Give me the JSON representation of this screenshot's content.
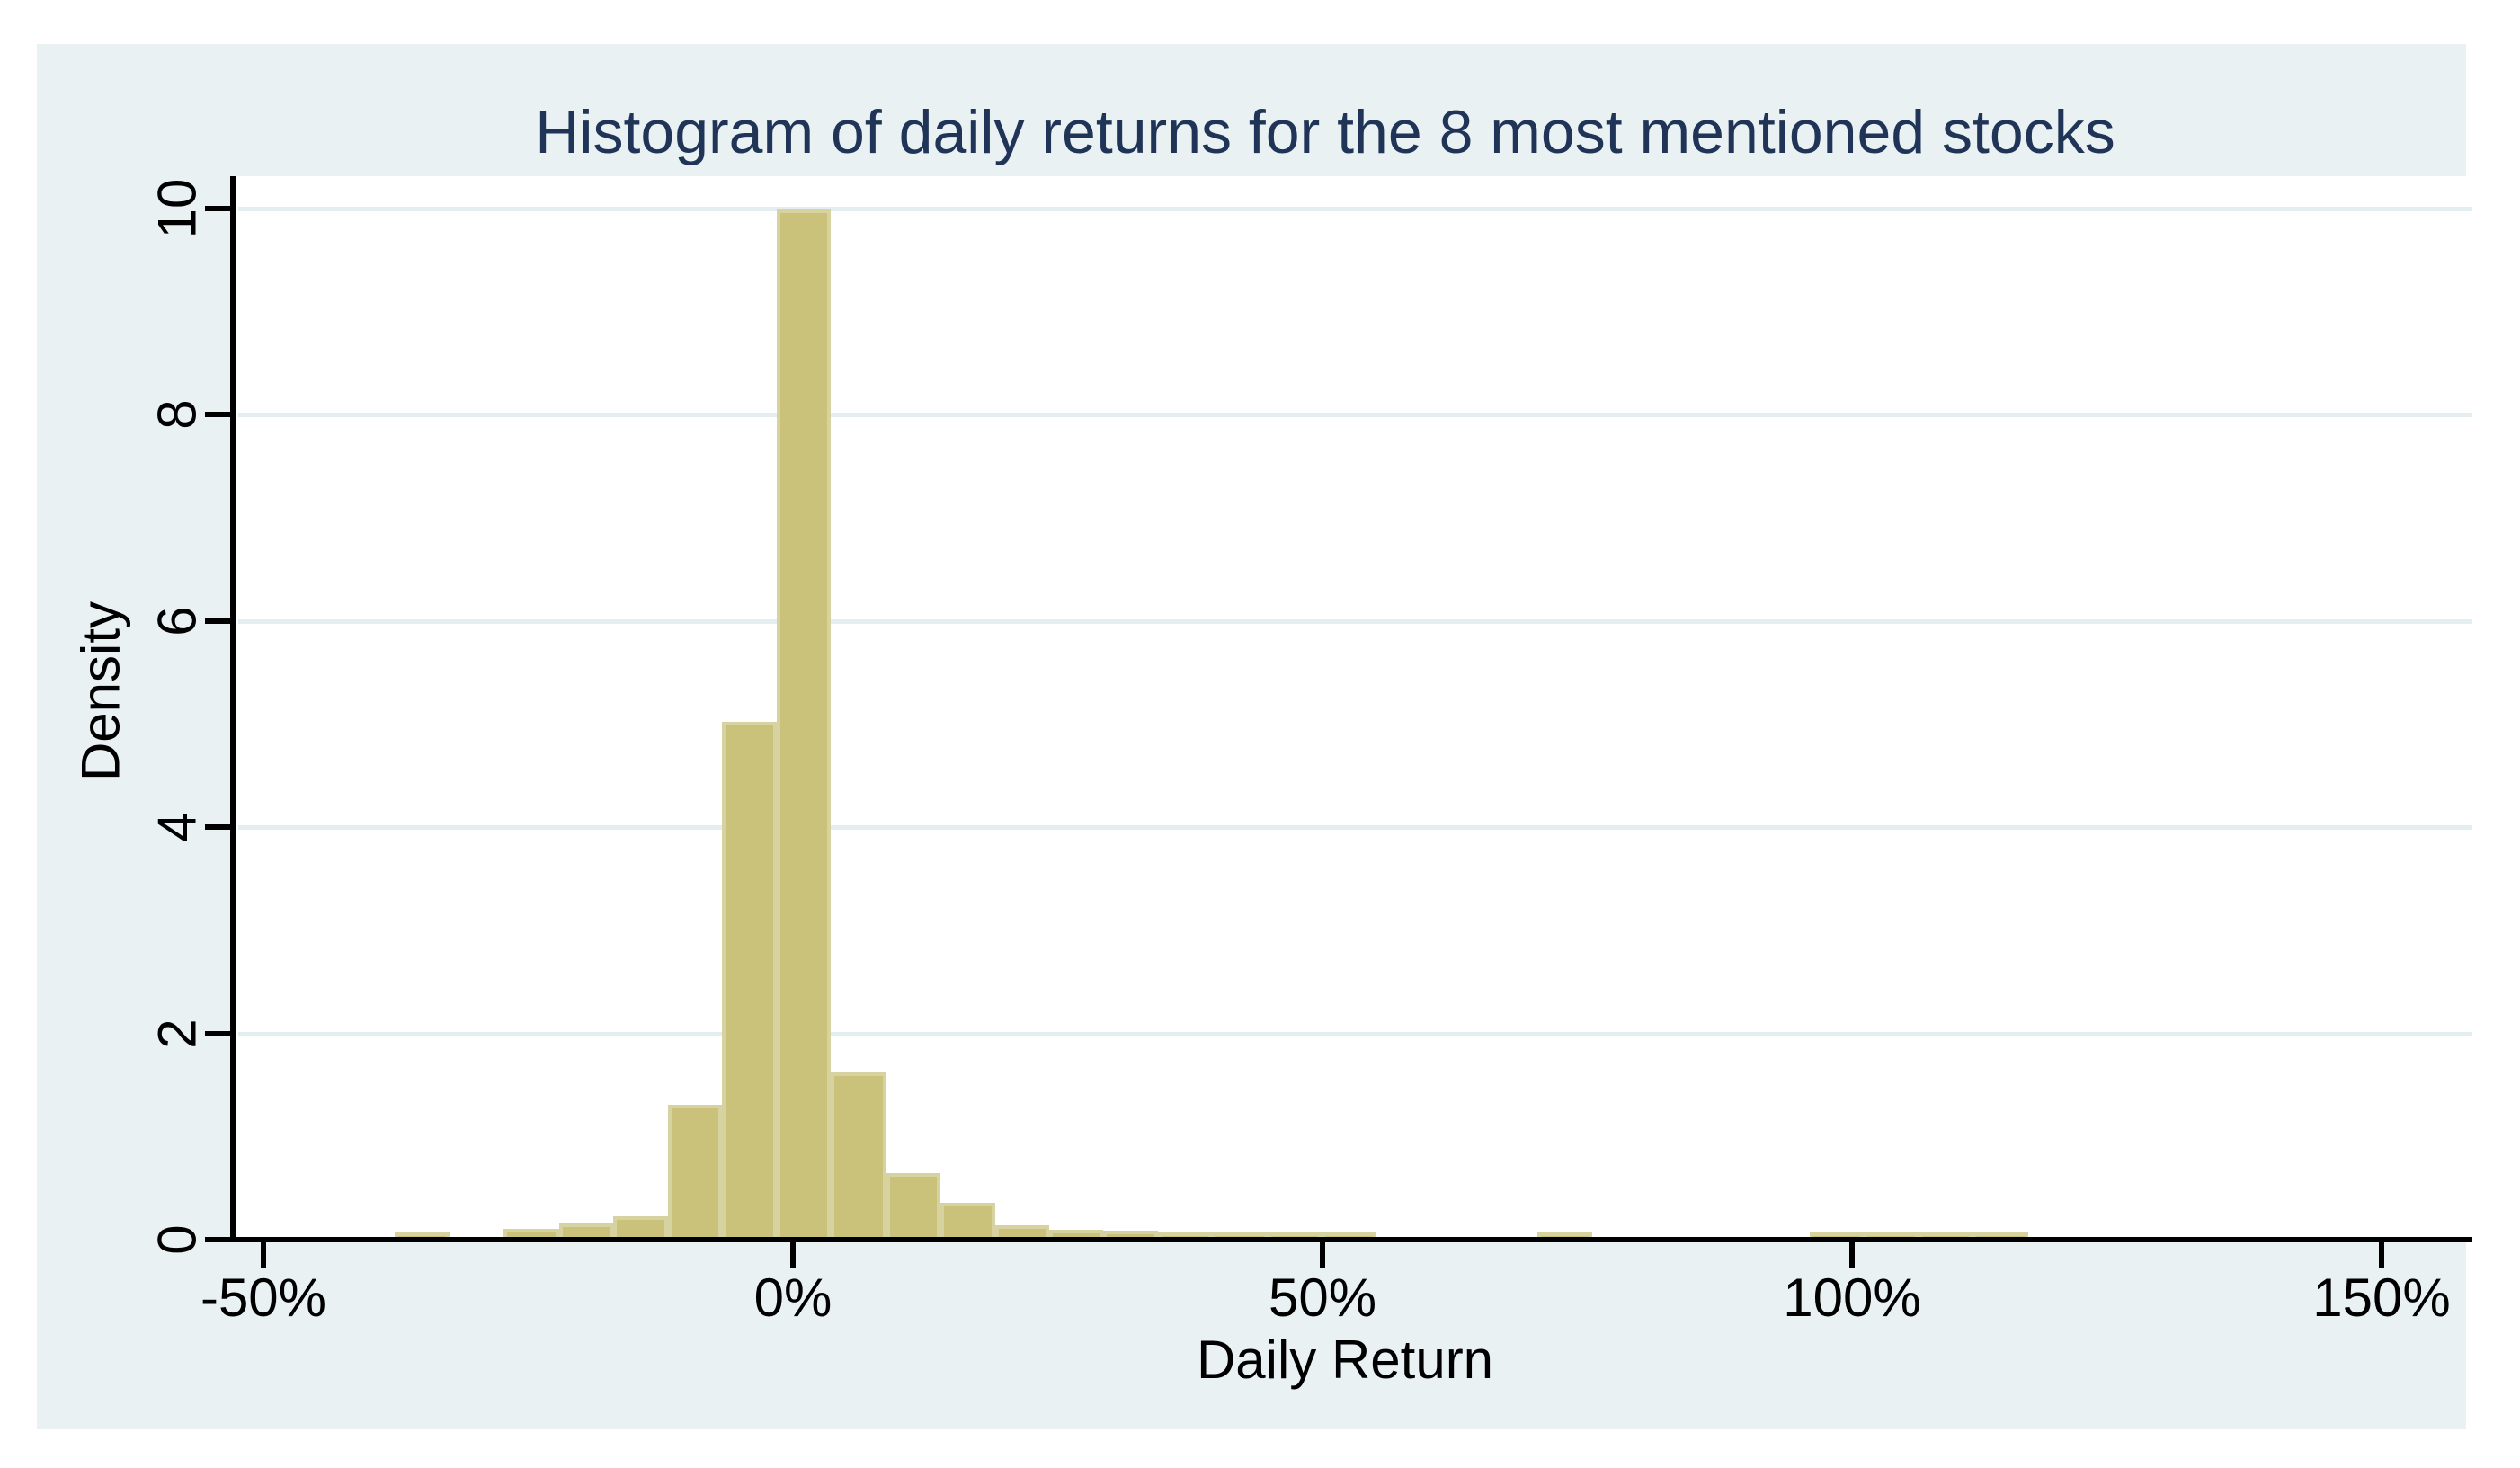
{
  "title": "Histogram of daily returns for the 8 most mentioned stocks",
  "colors": {
    "figure_background": "#e9f1f3",
    "plot_background": "#ffffff",
    "gridline": "#e4edf0",
    "bar_fill": "#cac17b",
    "bar_outline": "#d7d3a0",
    "axis": "#000000",
    "title_text": "#1f3456",
    "tick_text": "#000000"
  },
  "chart_data": {
    "type": "bar",
    "subtype": "histogram",
    "title": "Histogram of daily returns for the 8 most mentioned stocks",
    "xlabel": "Daily Return",
    "ylabel": "Density",
    "xlim_pct": [
      -52.6,
      158.6
    ],
    "ylim": [
      0,
      10.3
    ],
    "grid": "horizontal",
    "legend_position": "none",
    "x_ticks": [
      {
        "value": -50,
        "label": "-50%"
      },
      {
        "value": 0,
        "label": "0%"
      },
      {
        "value": 50,
        "label": "50%"
      },
      {
        "value": 100,
        "label": "100%"
      },
      {
        "value": 150,
        "label": "150%"
      }
    ],
    "y_ticks": [
      {
        "value": 0,
        "label": "0"
      },
      {
        "value": 2,
        "label": "2"
      },
      {
        "value": 4,
        "label": "4"
      },
      {
        "value": 6,
        "label": "6"
      },
      {
        "value": 8,
        "label": "8"
      },
      {
        "value": 10,
        "label": "10"
      }
    ],
    "bin_width_pct": 5.14,
    "bins": [
      {
        "from": -37.6,
        "to": -32.4,
        "density": 0.03
      },
      {
        "from": -32.4,
        "to": -27.3,
        "density": 0
      },
      {
        "from": -27.3,
        "to": -22.1,
        "density": 0.06
      },
      {
        "from": -22.1,
        "to": -17.0,
        "density": 0.11
      },
      {
        "from": -17.0,
        "to": -11.8,
        "density": 0.18
      },
      {
        "from": -11.8,
        "to": -6.7,
        "density": 1.26
      },
      {
        "from": -6.7,
        "to": -1.5,
        "density": 4.98
      },
      {
        "from": -1.5,
        "to": 3.6,
        "density": 9.95
      },
      {
        "from": 3.6,
        "to": 8.8,
        "density": 1.58
      },
      {
        "from": 8.8,
        "to": 13.9,
        "density": 0.6
      },
      {
        "from": 13.9,
        "to": 19.1,
        "density": 0.31
      },
      {
        "from": 19.1,
        "to": 24.2,
        "density": 0.1
      },
      {
        "from": 24.2,
        "to": 29.3,
        "density": 0.05
      },
      {
        "from": 29.3,
        "to": 34.5,
        "density": 0.04
      },
      {
        "from": 34.5,
        "to": 39.6,
        "density": 0.025
      },
      {
        "from": 39.6,
        "to": 44.8,
        "density": 0.02
      },
      {
        "from": 44.8,
        "to": 49.9,
        "density": 0.02
      },
      {
        "from": 49.9,
        "to": 55.1,
        "density": 0.02
      },
      {
        "from": 70.3,
        "to": 75.5,
        "density": 0.02
      },
      {
        "from": 96.0,
        "to": 101.1,
        "density": 0.025
      },
      {
        "from": 101.1,
        "to": 106.3,
        "density": 0.025
      },
      {
        "from": 106.3,
        "to": 111.4,
        "density": 0.025
      },
      {
        "from": 111.4,
        "to": 116.6,
        "density": 0.025
      }
    ]
  }
}
